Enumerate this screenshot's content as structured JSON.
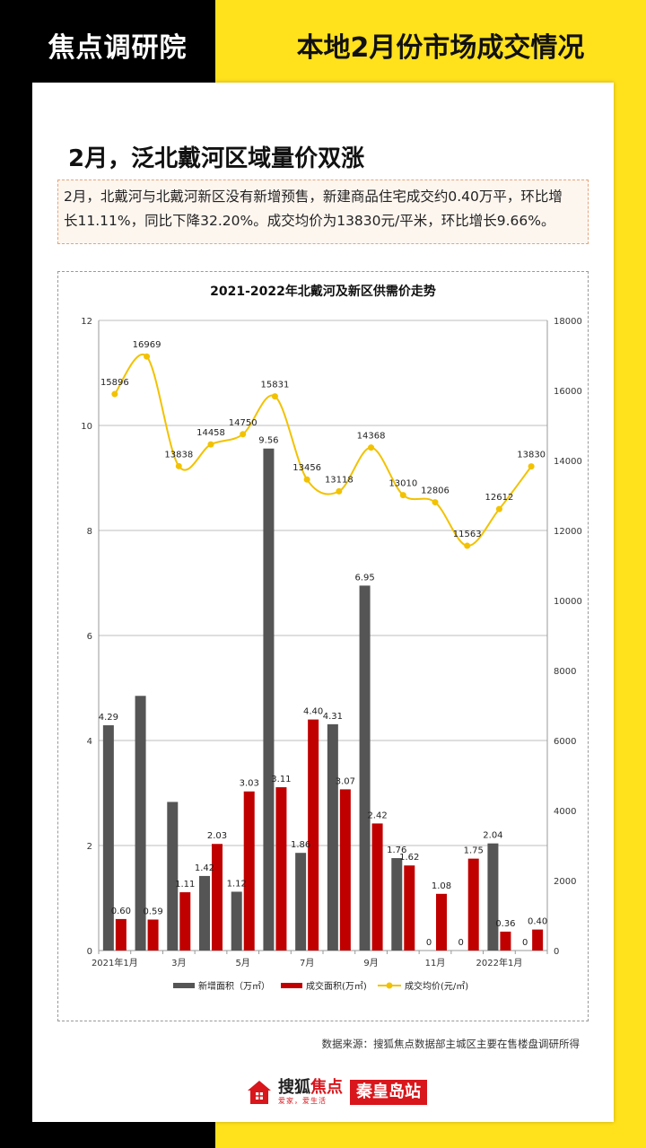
{
  "header": {
    "brand": "焦点调研院",
    "title": "本地2月份市场成交情况"
  },
  "section": {
    "title": "2月，泛北戴河区域量价双涨",
    "summary_line1": "2月，北戴河与北戴河新区没有新增预售，新建商品住宅成交约0.40万平，环比增",
    "summary_line2": "长11.11%，同比下降32.20%。成交均价为13830元/平米，环比增长9.66%。"
  },
  "chart_data": {
    "type": "bar",
    "title": "2021-2022年北戴河及新区供需价走势",
    "x_tick_labels": [
      "2021年1月",
      "",
      "3月",
      "",
      "5月",
      "",
      "7月",
      "",
      "9月",
      "",
      "11月",
      "",
      "2022年1月",
      ""
    ],
    "y_left": {
      "min": 0,
      "max": 12,
      "ticks": [
        0,
        2,
        4,
        6,
        8,
        10,
        12
      ]
    },
    "y_right": {
      "min": 0,
      "max": 18000,
      "ticks": [
        0,
        2000,
        4000,
        6000,
        8000,
        10000,
        12000,
        14000,
        16000,
        18000
      ]
    },
    "gridlines": true,
    "legend_position": "bottom",
    "series": [
      {
        "name": "新增面积（万㎡）",
        "type": "bar",
        "axis": "left",
        "color": "#555555",
        "values": [
          4.29,
          4.85,
          2.83,
          1.42,
          1.12,
          9.56,
          1.86,
          4.31,
          6.95,
          1.76,
          0,
          0,
          2.04,
          0
        ],
        "labels": [
          "4.29",
          "",
          "",
          "1.42",
          "1.12",
          "9.56",
          "1.86",
          "4.31",
          "6.95",
          "1.76",
          "0",
          "0",
          "2.04",
          "0"
        ]
      },
      {
        "name": "成交面积(万㎡)",
        "type": "bar",
        "axis": "left",
        "color": "#c00000",
        "values": [
          0.6,
          0.59,
          1.11,
          2.03,
          3.03,
          3.11,
          4.4,
          3.07,
          2.42,
          1.62,
          1.08,
          1.75,
          0.36,
          0.4
        ],
        "labels": [
          "0.60",
          "0.59",
          "1.11",
          "2.03",
          "3.03",
          "3.11",
          "4.40",
          "3.07",
          "2.42",
          "1.62",
          "1.08",
          "1.75",
          "0.36",
          "0.40"
        ]
      },
      {
        "name": "成交均价(元/㎡)",
        "type": "line",
        "axis": "right",
        "color": "#f2c200",
        "values": [
          15896,
          16969,
          13838,
          14458,
          14750,
          15831,
          13456,
          13118,
          14368,
          13010,
          12806,
          11563,
          12612,
          13830
        ],
        "labels": [
          "15896",
          "16969",
          "13838",
          "14458",
          "14750",
          "15831",
          "13456",
          "13118",
          "14368",
          "13010",
          "12806",
          "11563",
          "12612",
          "13830"
        ]
      }
    ]
  },
  "footer": {
    "source": "数据来源：搜狐焦点数据部主城区主要在售楼盘调研所得",
    "logo_main": "搜狐",
    "logo_accent": "焦点",
    "logo_slogan": "爱家，爱生活",
    "station": "秦皇岛站"
  }
}
